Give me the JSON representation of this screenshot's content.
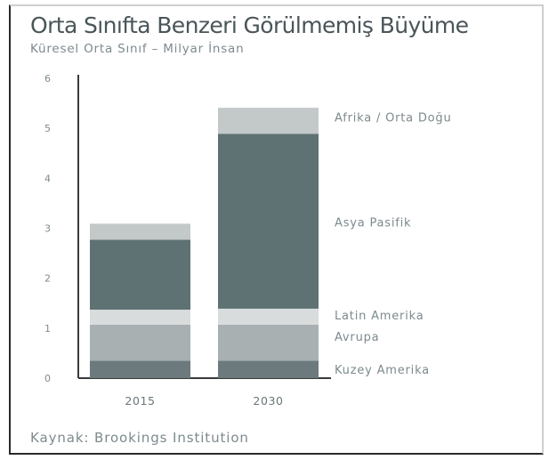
{
  "chart_data": {
    "type": "bar",
    "stacked": true,
    "title": "Orta Sınıfta Benzeri Görülmemiş Büyüme",
    "subtitle": "Küresel Orta Sınıf – Milyar İnsan",
    "source": "Kaynak: Brookings Institution",
    "categories": [
      "2015",
      "2030"
    ],
    "ylim": [
      0,
      6
    ],
    "yticks": [
      "0",
      "1",
      "2",
      "3",
      "4",
      "5",
      "6"
    ],
    "grid": false,
    "series": [
      {
        "name": "Kuzey Amerika",
        "values": [
          0.35,
          0.35
        ],
        "color": "#6c7a7d"
      },
      {
        "name": "Avrupa",
        "values": [
          0.72,
          0.72
        ],
        "color": "#a8b0b2"
      },
      {
        "name": "Latin Amerika",
        "values": [
          0.3,
          0.32
        ],
        "color": "#d9dcdd"
      },
      {
        "name": "Asya Pasifik",
        "values": [
          1.4,
          3.5
        ],
        "color": "#5e7274"
      },
      {
        "name": "Afrika / Orta Doğu",
        "values": [
          0.32,
          0.52
        ],
        "color": "#c3c8c9"
      }
    ]
  }
}
